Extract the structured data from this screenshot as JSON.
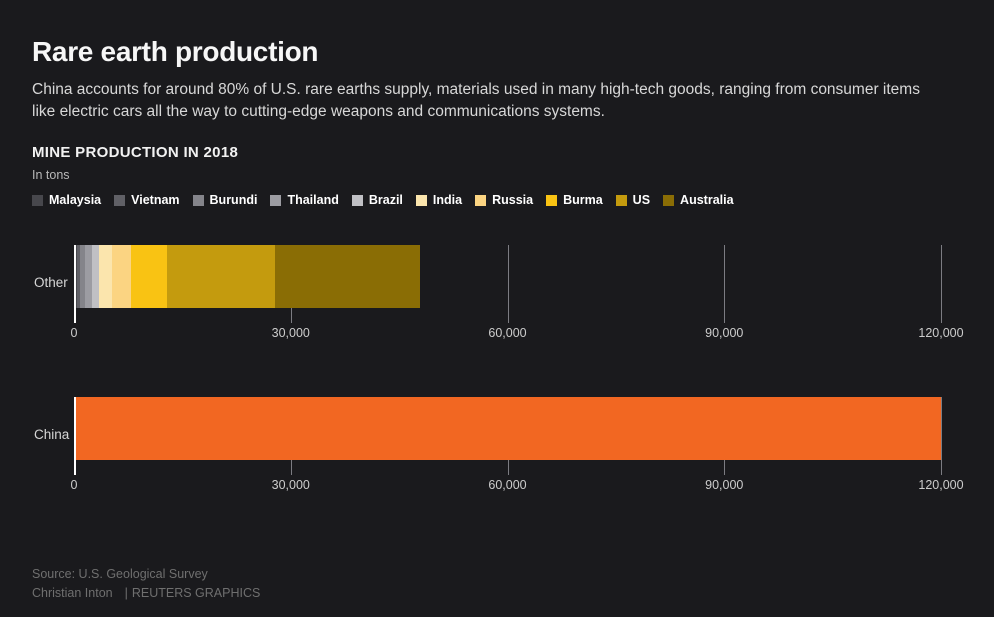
{
  "header": {
    "title": "Rare earth production",
    "subtitle": "China accounts for around 80% of U.S. rare earths supply, materials used in many high-tech goods, ranging from consumer items like electric cars all the way to cutting-edge weapons and communications systems."
  },
  "colors": {
    "background": "#1a1a1d",
    "title_text": "#f7f7f7",
    "subtitle_text": "#d8d8d8",
    "gridline": "#7c7c82",
    "zero_axis": "#ffffff",
    "china_orange": "#f26722"
  },
  "chart_data": {
    "type": "bar",
    "orientation": "horizontal",
    "title": "MINE PRODUCTION IN 2018",
    "unit_label": "In tons",
    "legend_position": "top",
    "grid": "vertical-ticks",
    "axis": {
      "min": 0,
      "max": 120000,
      "ticks": [
        0,
        30000,
        60000,
        90000,
        120000
      ],
      "tick_labels": [
        "0",
        "30,000",
        "60,000",
        "90,000",
        "120,000"
      ]
    },
    "rows": [
      {
        "label": "Other",
        "stacked": true,
        "segments": [
          {
            "name": "Malaysia",
            "value": 200,
            "color": "#47474c"
          },
          {
            "name": "Vietnam",
            "value": 400,
            "color": "#606066"
          },
          {
            "name": "Burundi",
            "value": 600,
            "color": "#84848a"
          },
          {
            "name": "Thailand",
            "value": 1000,
            "color": "#9c9ca2"
          },
          {
            "name": "Brazil",
            "value": 1000,
            "color": "#c0c0c4"
          },
          {
            "name": "India",
            "value": 1800,
            "color": "#fbe5ad"
          },
          {
            "name": "Russia",
            "value": 2600,
            "color": "#fbd482"
          },
          {
            "name": "Burma",
            "value": 5000,
            "color": "#f9c313"
          },
          {
            "name": "US",
            "value": 15000,
            "color": "#c49b0e"
          },
          {
            "name": "Australia",
            "value": 20000,
            "color": "#8a6d05"
          }
        ]
      },
      {
        "label": "China",
        "stacked": false,
        "segments": [
          {
            "name": "China",
            "value": 120000,
            "color": "#f26722"
          }
        ]
      }
    ]
  },
  "footer": {
    "source": "Source: U.S. Geological Survey",
    "byline": "Christian Inton",
    "separator": "|",
    "brand": "REUTERS GRAPHICS"
  }
}
